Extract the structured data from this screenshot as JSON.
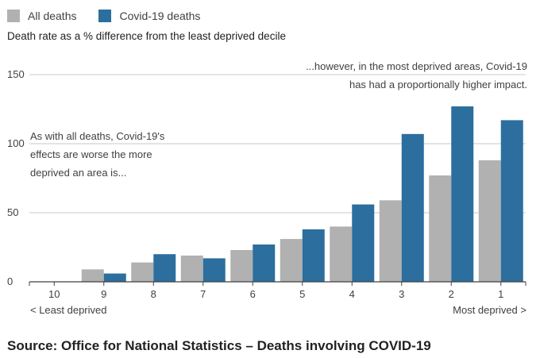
{
  "legend": [
    {
      "label": "All deaths",
      "color": "#b1b1b1"
    },
    {
      "label": "Covid-19 deaths",
      "color": "#2c6e9e"
    }
  ],
  "subtitle": "Death rate as a % difference from the least deprived decile",
  "annotations": {
    "left": [
      "As with all deaths, Covid-19's",
      "effects are worse the more",
      "deprived an area is..."
    ],
    "right": [
      "...however, in the most deprived areas, Covid-19",
      "has had a proportionally higher impact."
    ]
  },
  "axis_end_labels": {
    "left": "< Least deprived",
    "right": "Most deprived >"
  },
  "source": "Source: Office for National Statistics – Deaths involving COVID-19",
  "chart_data": {
    "type": "bar",
    "categories": [
      "10",
      "9",
      "8",
      "7",
      "6",
      "5",
      "4",
      "3",
      "2",
      "1"
    ],
    "series": [
      {
        "name": "All deaths",
        "values": [
          0,
          9,
          14,
          19,
          23,
          31,
          40,
          59,
          77,
          88
        ]
      },
      {
        "name": "Covid-19 deaths",
        "values": [
          0,
          6,
          20,
          17,
          27,
          38,
          56,
          107,
          127,
          117
        ]
      }
    ],
    "yticks": [
      0,
      50,
      100,
      150
    ],
    "ylim": [
      0,
      150
    ],
    "grid": true
  }
}
